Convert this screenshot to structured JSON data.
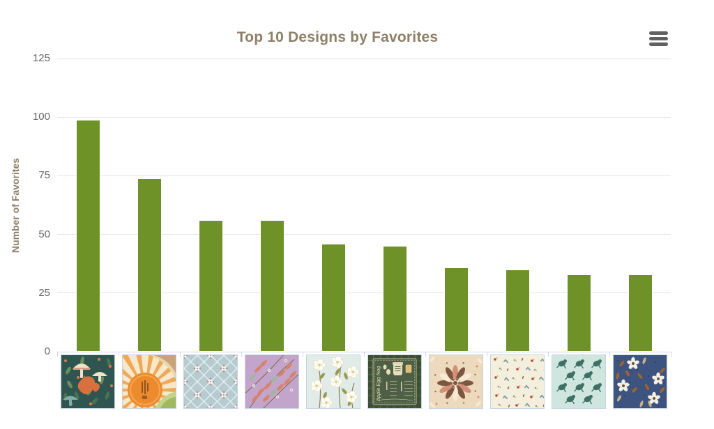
{
  "chart": {
    "title": "Top 10 Designs by Favorites",
    "y_axis_title": "Number of Favorites",
    "context_menu_icon": "hamburger-menu-icon",
    "colors": {
      "bar": "#6e9228",
      "title_text": "#8d7f66",
      "axis_title_text": "#8d7f66",
      "tick_label_text": "#666666",
      "gridline": "#e3e3e3",
      "axis_line": "#ccd6eb",
      "menu_icon": "#616161",
      "background": "#ffffff"
    }
  },
  "chart_data": {
    "type": "bar",
    "title": "Top 10 Designs by Favorites",
    "xlabel": "",
    "ylabel": "Number of Favorites",
    "ylim": [
      0,
      125
    ],
    "yticks": [
      0,
      25,
      50,
      75,
      100,
      125
    ],
    "grid": true,
    "legend": false,
    "x_labels_are": "design-thumbnail-images",
    "categories": [
      "fox-and-mushrooms-forest-pattern",
      "retro-sunburst-landscape",
      "blue-trellis-floral-pattern",
      "lavender-coral-leaves-pattern",
      "white-blossoms-on-blue-pattern",
      "apple-egg-nog-recipe-card",
      "leaf-mandala-pattern",
      "cream-ditsy-floral-pattern",
      "teal-frogs-pattern",
      "navy-floral-pattern"
    ],
    "values": [
      99,
      74,
      56,
      56,
      46,
      45,
      36,
      35,
      33,
      33
    ]
  },
  "thumbnails": [
    {
      "name": "fox-and-mushrooms-forest-pattern",
      "kind": "fox",
      "palette": {
        "bg": "#2f5551",
        "leaf1": "#4f7050",
        "leaf2": "#6d8d5a",
        "flower": "#e0784f",
        "cream": "#f0e3c6",
        "gill": "#d69b84",
        "teal": "#7fb0a8",
        "fox": "#d9703d"
      }
    },
    {
      "name": "retro-sunburst-landscape",
      "kind": "sun",
      "palette": {
        "bg": "#f6e8ca",
        "ray": "#f0a14b",
        "sun": "#ee8a2e",
        "sunEdge": "#f3a851",
        "text": "#7c4a1a",
        "hill": "#c9a47b",
        "stripe": "#e8d5ae",
        "green": "#9fb95c",
        "green2": "#c2d489"
      }
    },
    {
      "name": "blue-trellis-floral-pattern",
      "kind": "trellis",
      "palette": {
        "bg": "#b5cbd0",
        "line": "#dfeaec",
        "white": "#f4f7f5",
        "mauve": "#bd8f8d",
        "dark": "#5a6a72"
      }
    },
    {
      "name": "lavender-coral-leaves-pattern",
      "kind": "lavender",
      "palette": {
        "bg": "#c3a4cb",
        "coral": "#d8826a",
        "sage": "#9fb6a2",
        "stem": "#7f6650",
        "white": "#f2ece6"
      }
    },
    {
      "name": "white-blossoms-on-blue-pattern",
      "kind": "blossom",
      "palette": {
        "bg": "#e1ebe8",
        "stem": "#8a844a",
        "leaf": "#99984f",
        "petal": "#fdfdf4",
        "edge": "#ded0ab",
        "center": "#d8c890"
      }
    },
    {
      "name": "apple-egg-nog-recipe-card",
      "kind": "recipe",
      "palette": {
        "bg": "#45573c",
        "plaid": "#394a30",
        "plaid2": "#55684a",
        "panel": "#4d5f45",
        "cream": "#e9ddb9",
        "amber": "#e2bd6d"
      }
    },
    {
      "name": "leaf-mandala-pattern",
      "kind": "mandala",
      "palette": {
        "bg": "#eddabd",
        "brown": "#7c563e",
        "pink": "#d29079",
        "cream": "#f6ead6"
      }
    },
    {
      "name": "cream-ditsy-floral-pattern",
      "kind": "ditsy",
      "palette": {
        "bg": "#f3efdc",
        "red": "#b04c2c",
        "slate": "#7f9aa8",
        "olive": "#8f9e6a",
        "brown": "#8a6a4a"
      }
    },
    {
      "name": "teal-frogs-pattern",
      "kind": "frogs",
      "palette": {
        "bg": "#cfe6de",
        "frog": "#3f7065"
      }
    },
    {
      "name": "navy-floral-pattern",
      "kind": "navy",
      "palette": {
        "bg": "#3d5480",
        "petal": "#f2f0e6",
        "center": "#6b5336",
        "rust": "#a2622d",
        "tan": "#c8b189",
        "speck": "#1e2a40"
      }
    }
  ]
}
